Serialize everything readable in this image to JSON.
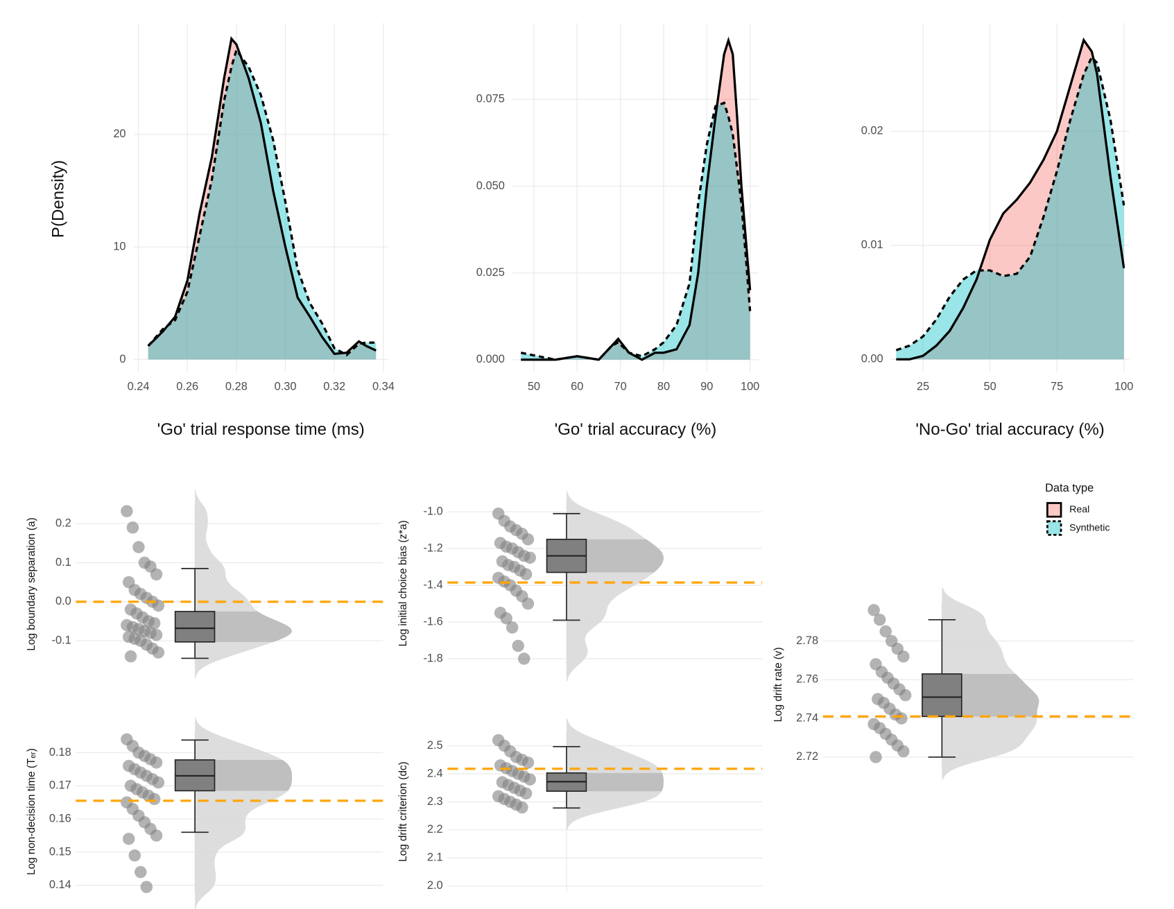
{
  "chart_data": [
    {
      "type": "density",
      "ylabel": "P(Density)",
      "xlabel": "'Go' trial response time (ms)",
      "xlim": [
        0.238,
        0.342
      ],
      "ylim": [
        -1.1,
        29.9
      ],
      "xticks": [
        0.24,
        0.26,
        0.28,
        {
          "value": 0.3,
          "label": "0.30"
        },
        0.32,
        0.34
      ],
      "yticks": [
        0,
        10,
        20
      ],
      "x": [
        0.244,
        0.25,
        0.255,
        0.26,
        0.265,
        0.27,
        0.275,
        0.278,
        0.28,
        0.285,
        0.29,
        0.295,
        0.3,
        0.305,
        0.31,
        0.315,
        0.32,
        0.325,
        0.33,
        0.333,
        0.337
      ],
      "series": [
        {
          "name": "Real",
          "color": "#F8766D",
          "line_style": "solid",
          "values": [
            1.2,
            2.5,
            3.8,
            7,
            13,
            18,
            25,
            28.5,
            28,
            25,
            21,
            15,
            10,
            5.5,
            3.8,
            2,
            0.5,
            0.6,
            1.6,
            1.2,
            0.8
          ]
        },
        {
          "name": "Synthetic",
          "color": "#00BFC4",
          "line_style": "dashed",
          "values": [
            1.2,
            2.7,
            3.5,
            6,
            11,
            16,
            23,
            26,
            27.5,
            26,
            23.5,
            19.5,
            14,
            8,
            5,
            3.2,
            1,
            0.4,
            1.4,
            1.5,
            1.5
          ]
        }
      ]
    },
    {
      "type": "density",
      "xlabel": "'Go' trial accuracy (%)",
      "xlim": [
        45,
        102
      ],
      "ylim": [
        -0.0035,
        0.097
      ],
      "xticks": [
        50,
        60,
        70,
        80,
        90,
        100
      ],
      "yticks": [
        {
          "value": 0,
          "label": "0.000"
        },
        0.025,
        {
          "value": 0.05,
          "label": "0.050"
        },
        0.075
      ],
      "x": [
        47,
        55,
        60,
        65,
        68,
        69.5,
        72,
        75,
        78,
        80,
        83,
        86,
        88,
        90,
        92,
        94,
        95,
        96,
        97,
        98,
        99,
        100
      ],
      "series": [
        {
          "name": "Real",
          "color": "#F8766D",
          "line_style": "solid",
          "values": [
            0,
            0,
            0.001,
            0,
            0.004,
            0.006,
            0.002,
            0,
            0.002,
            0.002,
            0.003,
            0.01,
            0.025,
            0.05,
            0.07,
            0.088,
            0.092,
            0.088,
            0.07,
            0.05,
            0.035,
            0.02
          ]
        },
        {
          "name": "Synthetic",
          "color": "#00BFC4",
          "line_style": "dashed",
          "values": [
            0.002,
            0,
            0.001,
            0,
            0.004,
            0.005,
            0.002,
            0.001,
            0.003,
            0.005,
            0.01,
            0.022,
            0.045,
            0.062,
            0.073,
            0.074,
            0.07,
            0.065,
            0.055,
            0.045,
            0.03,
            0.014
          ]
        }
      ]
    },
    {
      "type": "density",
      "xlabel": "'No-Go' trial accuracy (%)",
      "xlim": [
        13,
        102
      ],
      "ylim": [
        -0.0011,
        0.0295
      ],
      "xticks": [
        25,
        50,
        75,
        100
      ],
      "yticks": [
        {
          "value": 0,
          "label": "0.00"
        },
        0.01,
        0.02
      ],
      "x": [
        15,
        20,
        25,
        30,
        35,
        40,
        45,
        50,
        55,
        60,
        65,
        70,
        75,
        80,
        85,
        88,
        90,
        95,
        100
      ],
      "series": [
        {
          "name": "Real",
          "color": "#F8766D",
          "line_style": "solid",
          "values": [
            0,
            0,
            0.0003,
            0.0012,
            0.0025,
            0.0045,
            0.007,
            0.0105,
            0.0128,
            0.014,
            0.0155,
            0.0175,
            0.02,
            0.024,
            0.028,
            0.027,
            0.025,
            0.016,
            0.008
          ]
        },
        {
          "name": "Synthetic",
          "color": "#00BFC4",
          "line_style": "dashed",
          "values": [
            0.0008,
            0.0012,
            0.002,
            0.0035,
            0.0055,
            0.007,
            0.0078,
            0.0078,
            0.0073,
            0.0075,
            0.009,
            0.0125,
            0.0165,
            0.021,
            0.025,
            0.0265,
            0.026,
            0.021,
            0.0135
          ]
        }
      ],
      "legend_title": "Data type"
    },
    {
      "type": "raincloud",
      "ylabel": "Log boundary separation (a)",
      "ylim": [
        -0.159,
        0.249
      ],
      "yticks": [
        -0.1,
        {
          "value": 0,
          "label": "0.0"
        },
        0.1,
        0.2
      ],
      "points": [
        0.232,
        0.19,
        0.14,
        0.1,
        0.09,
        0.07,
        0.05,
        0.03,
        0.02,
        0.01,
        0,
        -0.01,
        -0.02,
        -0.03,
        -0.04,
        -0.05,
        -0.055,
        -0.06,
        -0.065,
        -0.07,
        -0.075,
        -0.08,
        -0.085,
        -0.09,
        -0.095,
        -0.1,
        -0.11,
        -0.12,
        -0.13,
        -0.14
      ],
      "box": {
        "min": -0.145,
        "q1": -0.103,
        "median": -0.068,
        "q3": -0.025,
        "max": 0.085
      },
      "reference": 0,
      "reference_color": "#FFA500"
    },
    {
      "type": "raincloud",
      "ylabel": "Log initial choice bias (z*a)",
      "ylim": [
        -1.84,
        -0.94
      ],
      "yticks": [
        -1.8,
        -1.6,
        -1.4,
        -1.2,
        {
          "value": -1,
          "label": "-1.0"
        }
      ],
      "points": [
        -1.01,
        -1.05,
        -1.08,
        -1.1,
        -1.12,
        -1.15,
        -1.17,
        -1.19,
        -1.2,
        -1.22,
        -1.24,
        -1.25,
        -1.27,
        -1.29,
        -1.3,
        -1.32,
        -1.34,
        -1.36,
        -1.38,
        -1.4,
        -1.43,
        -1.46,
        -1.5,
        -1.55,
        -1.58,
        -1.63,
        -1.73,
        -1.8
      ],
      "box": {
        "min": -1.59,
        "q1": -1.33,
        "median": -1.24,
        "q3": -1.15,
        "max": -1.01
      },
      "reference": -1.385,
      "reference_color": "#FFA500"
    },
    {
      "type": "raincloud",
      "ylabel": "Log drift rate (v)",
      "ylim": [
        2.7153,
        2.7996
      ],
      "yticks": [
        2.72,
        2.74,
        2.76,
        2.78
      ],
      "points": [
        2.796,
        2.791,
        2.785,
        2.78,
        2.776,
        2.772,
        2.768,
        2.764,
        2.761,
        2.758,
        2.755,
        2.752,
        2.75,
        2.748,
        2.745,
        2.742,
        2.74,
        2.737,
        2.735,
        2.732,
        2.729,
        2.726,
        2.723,
        2.72
      ],
      "box": {
        "min": 2.72,
        "q1": 2.741,
        "median": 2.751,
        "q3": 2.763,
        "max": 2.791
      },
      "reference": 2.741,
      "reference_color": "#FFA500"
    },
    {
      "type": "raincloud",
      "ylabel": "Log non-decision time (Tₑᵣ)",
      "ylim": [
        0.1382,
        0.1862
      ],
      "yticks": [
        0.14,
        0.15,
        0.16,
        0.17,
        0.18
      ],
      "points": [
        0.184,
        0.182,
        0.18,
        0.179,
        0.178,
        0.177,
        0.176,
        0.175,
        0.174,
        0.173,
        0.172,
        0.171,
        0.17,
        0.169,
        0.168,
        0.167,
        0.166,
        0.165,
        0.163,
        0.161,
        0.159,
        0.157,
        0.155,
        0.154,
        0.149,
        0.144,
        0.1395
      ],
      "box": {
        "min": 0.156,
        "q1": 0.1685,
        "median": 0.173,
        "q3": 0.1778,
        "max": 0.1838
      },
      "reference": 0.1655,
      "reference_color": "#FFA500"
    },
    {
      "type": "raincloud",
      "ylabel": "Log drift criterion (dc)",
      "ylim": [
        1.981,
        2.549
      ],
      "yticks": [
        {
          "value": 2,
          "label": "2.0"
        },
        2.1,
        2.2,
        2.3,
        2.4,
        2.5
      ],
      "points": [
        2.52,
        2.5,
        2.48,
        2.46,
        2.45,
        2.44,
        2.43,
        2.42,
        2.41,
        2.4,
        2.39,
        2.38,
        2.37,
        2.36,
        2.35,
        2.34,
        2.33,
        2.32,
        2.31,
        2.3,
        2.29,
        2.28
      ],
      "box": {
        "min": 2.278,
        "q1": 2.338,
        "median": 2.372,
        "q3": 2.403,
        "max": 2.497
      },
      "reference": 2.418,
      "reference_color": "#FFA500"
    }
  ]
}
